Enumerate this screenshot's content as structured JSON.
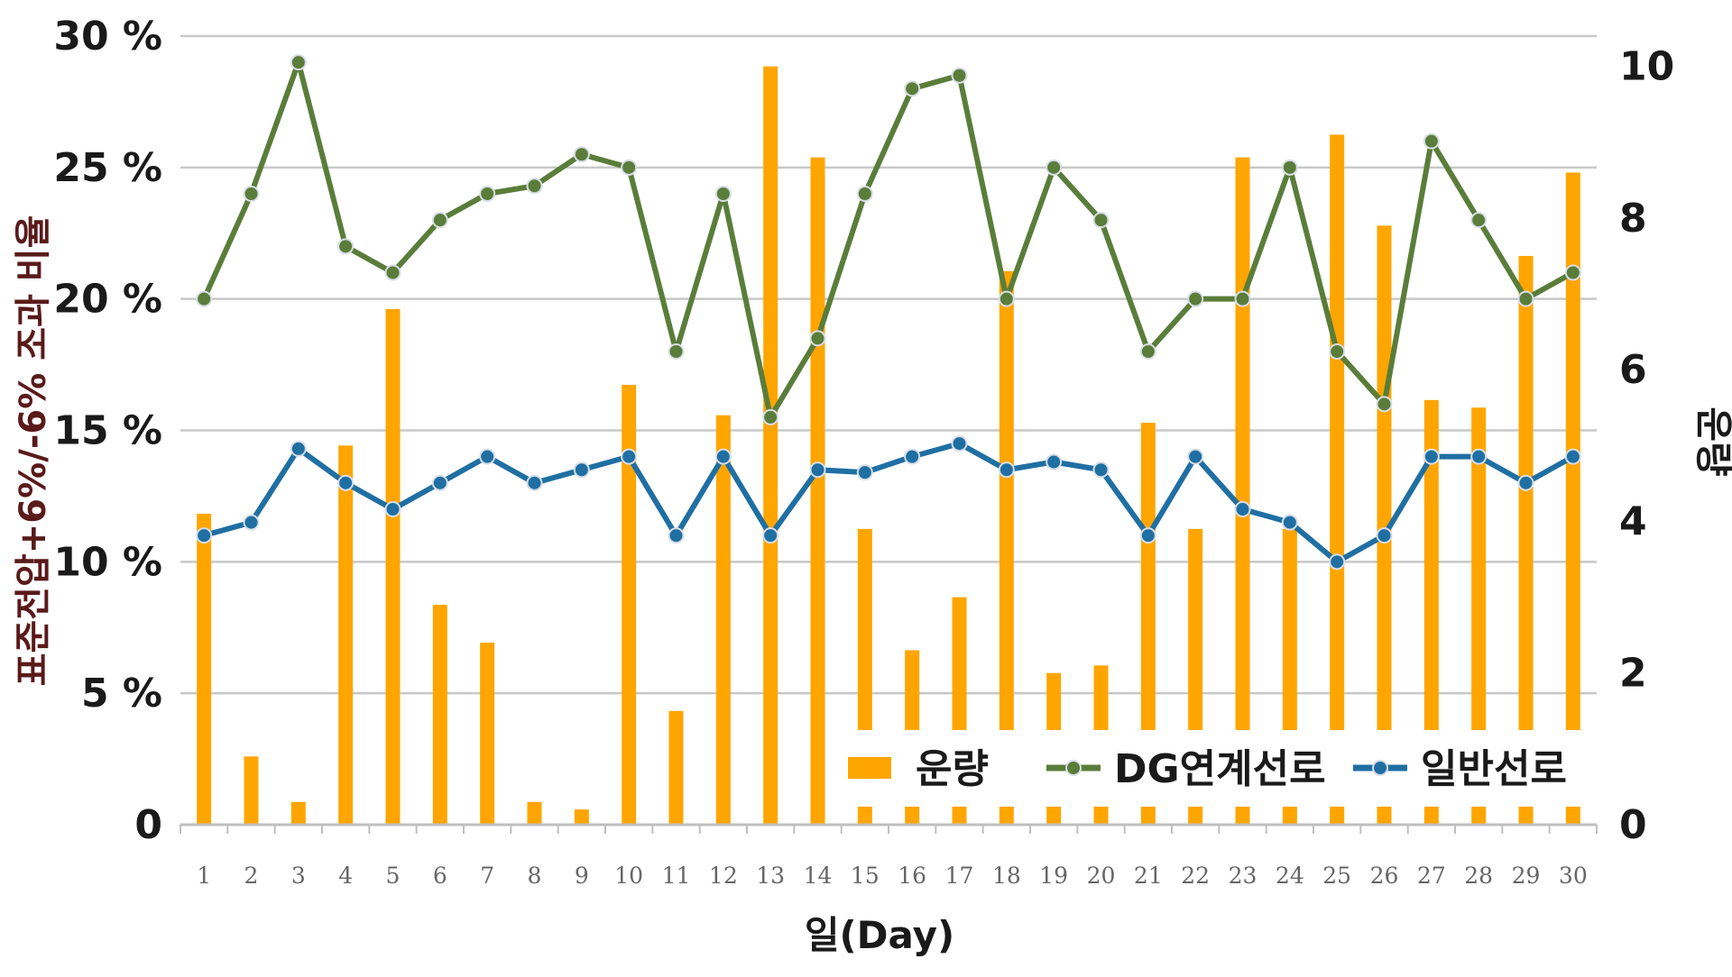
{
  "chart_data": {
    "type": "bar+line",
    "x_categories": [
      "1",
      "2",
      "3",
      "4",
      "5",
      "6",
      "7",
      "8",
      "9",
      "10",
      "11",
      "12",
      "13",
      "14",
      "15",
      "16",
      "17",
      "18",
      "19",
      "20",
      "21",
      "22",
      "23",
      "24",
      "25",
      "26",
      "27",
      "28",
      "29",
      "30"
    ],
    "xlabel": "일(Day)",
    "ylabel_left": "표준전압+6%/-6% 조과 비율",
    "ylabel_right": "운량",
    "yleft_ticks": [
      "0",
      "5 %",
      "10 %",
      "15 %",
      "20 %",
      "25 %",
      "30 %"
    ],
    "yright_ticks": [
      "0",
      "2",
      "4",
      "6",
      "8",
      "10"
    ],
    "yleft_range": [
      0,
      30
    ],
    "yright_range": [
      0,
      10.4
    ],
    "grid": "horizontal",
    "legend_position": "bottom-right",
    "series": [
      {
        "name": "운량",
        "kind": "bar",
        "axis": "right",
        "color": "#ffa500",
        "values": [
          4.1,
          0.9,
          0.3,
          5.0,
          6.8,
          2.9,
          2.4,
          0.3,
          0.2,
          5.8,
          1.5,
          5.4,
          10.0,
          8.8,
          3.9,
          2.3,
          3.0,
          7.3,
          2.0,
          2.1,
          5.3,
          3.9,
          8.8,
          3.9,
          9.1,
          7.9,
          5.6,
          5.5,
          7.5,
          8.6
        ]
      },
      {
        "name": "DG연계선로",
        "kind": "line",
        "axis": "left",
        "color": "#5a7d3a",
        "values": [
          20,
          24,
          29,
          22,
          21,
          23,
          24,
          24.3,
          25.5,
          25,
          18,
          24,
          15.5,
          18.5,
          24,
          28,
          28.5,
          20,
          25,
          23,
          18,
          20,
          20,
          25,
          18,
          16,
          26,
          23,
          20,
          21
        ]
      },
      {
        "name": "일반선로",
        "kind": "line",
        "axis": "left",
        "color": "#1f6fa3",
        "values": [
          11,
          11.5,
          14.3,
          13,
          12,
          13,
          14,
          13,
          13.5,
          14,
          11,
          14,
          11,
          13.5,
          13.4,
          14,
          14.5,
          13.5,
          13.8,
          13.5,
          11,
          14,
          12,
          11.5,
          10,
          11,
          14,
          14,
          13,
          14
        ]
      }
    ]
  }
}
